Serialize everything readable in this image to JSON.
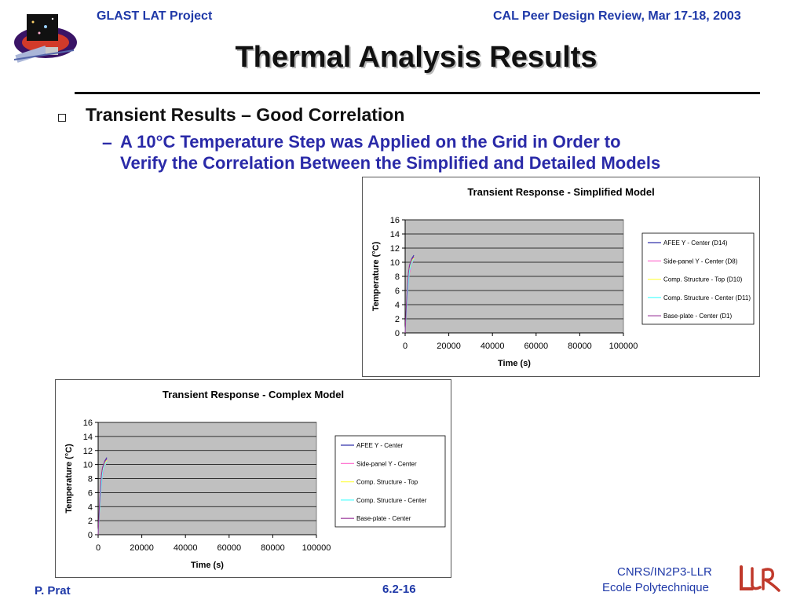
{
  "header": {
    "left": "GLAST LAT Project",
    "right": "CAL Peer Design Review, Mar 17-18, 2003"
  },
  "title": "Thermal Analysis Results",
  "bullet": "Transient Results – Good Correlation",
  "sub_bullet": {
    "dash": "–",
    "line1": "A 10°C Temperature Step was Applied on the Grid in Order to",
    "line2": "Verify the Correlation Between the Simplified and Detailed Models"
  },
  "colors": {
    "accent": "#1f39a8",
    "plot_bg": "#c0c0c0"
  },
  "chart_data": [
    {
      "type": "line",
      "title": "Transient Response - Simplified Model",
      "xlabel": "Time (s)",
      "ylabel": "Temperature (°C)",
      "xlim": [
        0,
        100000
      ],
      "ylim": [
        0,
        16
      ],
      "xticks": [
        "0",
        "20000",
        "40000",
        "60000",
        "80000",
        "100000"
      ],
      "yticks": [
        "0",
        "2",
        "4",
        "6",
        "8",
        "10",
        "12",
        "14",
        "16"
      ],
      "grid": true,
      "legend": "right",
      "x": [
        0,
        500,
        1000,
        1500,
        2000,
        3000,
        4000
      ],
      "series": [
        {
          "name": "AFEE Y - Center (D14)",
          "color": "#3333aa",
          "values": [
            0,
            3,
            6,
            8,
            9.5,
            10.5,
            11
          ]
        },
        {
          "name": "Side-panel Y - Center (D8)",
          "color": "#ff66cc",
          "values": [
            0,
            2.5,
            5,
            7,
            8.5,
            9.8,
            10.3
          ]
        },
        {
          "name": "Comp. Structure - Top (D10)",
          "color": "#ffff55",
          "values": [
            0,
            2.8,
            5.5,
            7.5,
            9,
            10,
            10.6
          ]
        },
        {
          "name": "Comp. Structure - Center (D11)",
          "color": "#55ffff",
          "values": [
            0,
            2.6,
            5.2,
            7.2,
            8.8,
            9.9,
            10.4
          ]
        },
        {
          "name": "Base-plate - Center (D1)",
          "color": "#993399",
          "values": [
            0,
            3.5,
            6.5,
            8.5,
            9.6,
            10.4,
            10.8
          ]
        }
      ]
    },
    {
      "type": "line",
      "title": "Transient Response - Complex Model",
      "xlabel": "Time (s)",
      "ylabel": "Temperature (°C)",
      "xlim": [
        0,
        100000
      ],
      "ylim": [
        0,
        16
      ],
      "xticks": [
        "0",
        "20000",
        "40000",
        "60000",
        "80000",
        "100000"
      ],
      "yticks": [
        "0",
        "2",
        "4",
        "6",
        "8",
        "10",
        "12",
        "14",
        "16"
      ],
      "grid": true,
      "legend": "right",
      "x": [
        0,
        500,
        1000,
        1500,
        2000,
        3000,
        4000
      ],
      "series": [
        {
          "name": "AFEE Y - Center",
          "color": "#3333aa",
          "values": [
            0,
            3,
            6,
            8,
            9.5,
            10.5,
            11
          ]
        },
        {
          "name": "Side-panel Y - Center",
          "color": "#ff66cc",
          "values": [
            0,
            2.5,
            5,
            7,
            8.5,
            9.8,
            10.3
          ]
        },
        {
          "name": "Comp. Structure - Top",
          "color": "#ffff55",
          "values": [
            0,
            2.8,
            5.5,
            7.5,
            9,
            10,
            10.6
          ]
        },
        {
          "name": "Comp. Structure - Center",
          "color": "#55ffff",
          "values": [
            0,
            2.6,
            5.2,
            7.2,
            8.8,
            9.9,
            10.4
          ]
        },
        {
          "name": "Base-plate - Center",
          "color": "#993399",
          "values": [
            0,
            3.5,
            6.5,
            8.5,
            9.6,
            10.4,
            10.8
          ]
        }
      ]
    }
  ],
  "footer": {
    "left": "P. Prat",
    "center": "6.2-16",
    "org1": "CNRS/IN2P3-LLR",
    "org2": "Ecole Polytechnique",
    "logo_text": "LLR"
  }
}
